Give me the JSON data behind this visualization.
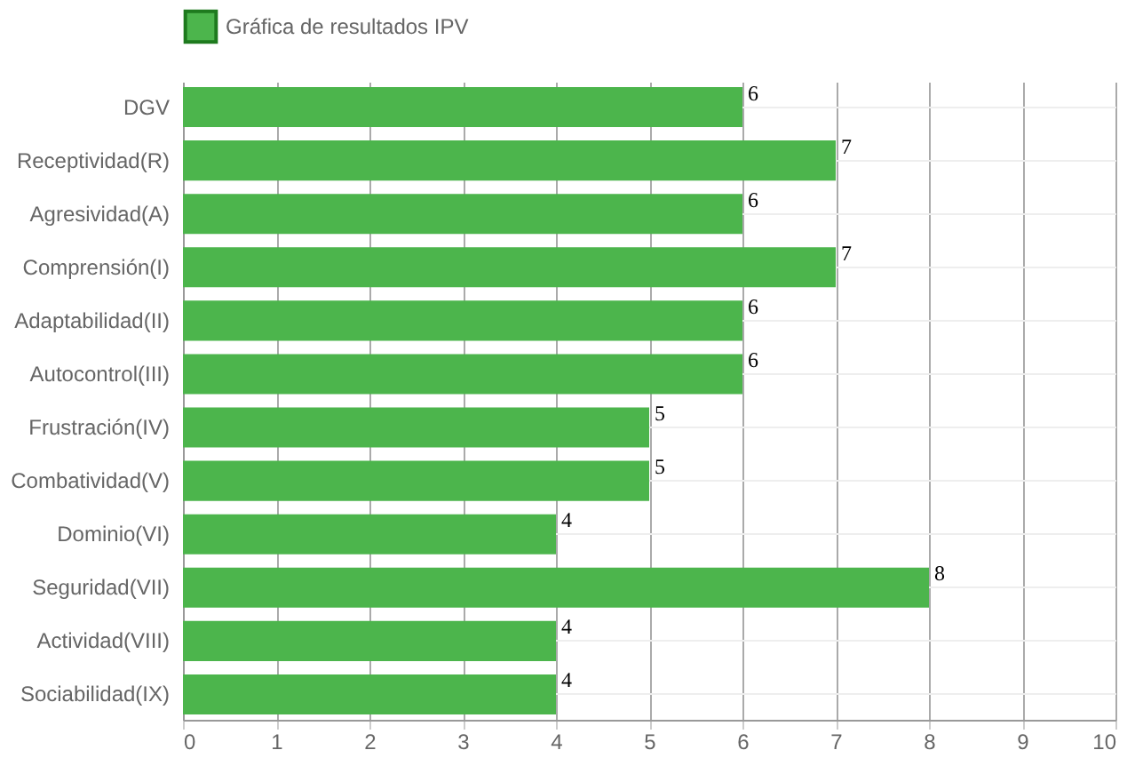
{
  "chart_data": {
    "type": "bar",
    "orientation": "horizontal",
    "categories": [
      "DGV",
      "Receptividad(R)",
      "Agresividad(A)",
      "Comprensión(I)",
      "Adaptabilidad(II)",
      "Autocontrol(III)",
      "Frustración(IV)",
      "Combatividad(V)",
      "Dominio(VI)",
      "Seguridad(VII)",
      "Actividad(VIII)",
      "Sociabilidad(IX)"
    ],
    "series": [
      {
        "name": "Gráfica de resultados IPV",
        "color": "#4cb54c",
        "values": [
          6,
          7,
          6,
          7,
          6,
          6,
          5,
          5,
          4,
          8,
          4,
          4
        ]
      }
    ],
    "xlim": [
      0,
      10
    ],
    "xticks": [
      0,
      1,
      2,
      3,
      4,
      5,
      6,
      7,
      8,
      9,
      10
    ],
    "grid": true,
    "legend": "top",
    "data_labels": true
  }
}
